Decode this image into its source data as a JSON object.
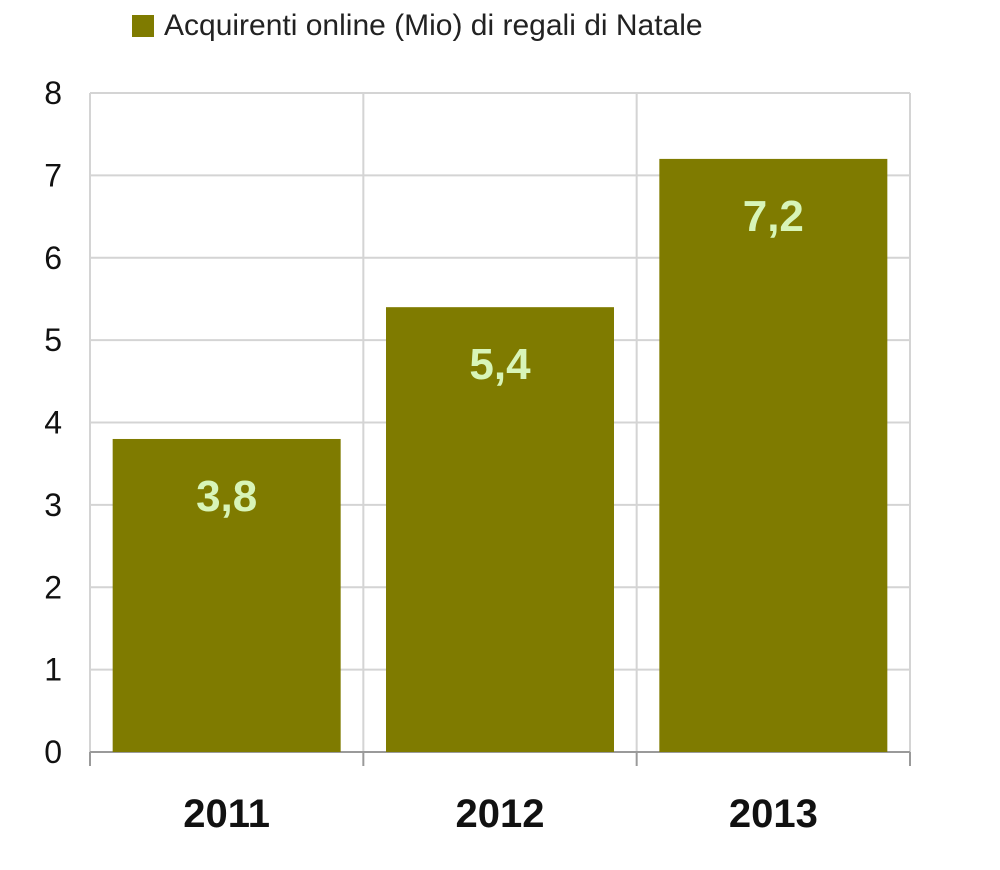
{
  "chart_data": {
    "type": "bar",
    "categories": [
      "2011",
      "2012",
      "2013"
    ],
    "series": [
      {
        "name": "Acquirenti online (Mio) di regali di Natale",
        "values": [
          3.8,
          5.4,
          7.2
        ],
        "data_labels": [
          "3,8",
          "5,4",
          "7,2"
        ]
      }
    ],
    "y_ticks": [
      "0",
      "1",
      "2",
      "3",
      "4",
      "5",
      "6",
      "7",
      "8"
    ],
    "ylim": [
      0,
      8
    ],
    "grid": true,
    "legend_position": "top"
  },
  "colors": {
    "bar": "#7f7b00",
    "data_label": "#d8f5b8",
    "grid": "#d4d4d4",
    "axis_text": "#111111"
  }
}
